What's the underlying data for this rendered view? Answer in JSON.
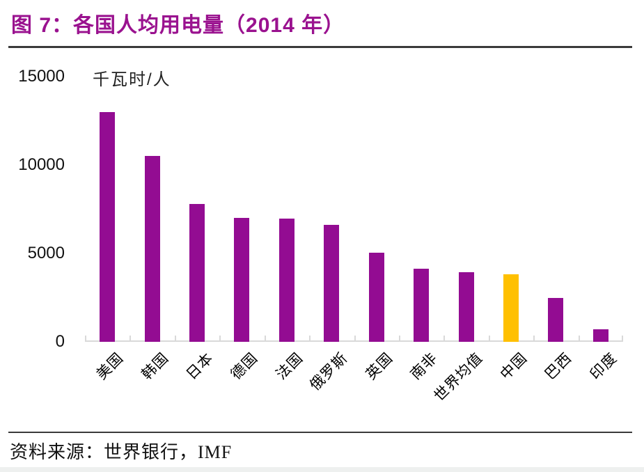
{
  "header": {
    "title": "图 7：各国人均用电量（2014 年）"
  },
  "chart_data": {
    "type": "bar",
    "title": "各国人均用电量（2014 年）",
    "unit_label": "千瓦时/人",
    "categories": [
      "美国",
      "韩国",
      "日本",
      "德国",
      "法国",
      "俄罗斯",
      "英国",
      "南非",
      "世界均值",
      "中国",
      "巴西",
      "印度"
    ],
    "values": [
      13000,
      10500,
      7800,
      7000,
      6950,
      6600,
      5050,
      4150,
      3920,
      3800,
      2500,
      710
    ],
    "highlight_category": "中国",
    "xlabel": "",
    "ylabel": "千瓦时/人",
    "ylim": [
      0,
      15000
    ],
    "y_ticks": [
      0,
      5000,
      10000,
      15000
    ],
    "grid": false,
    "legend": "none",
    "colors": {
      "bar": "#930C92",
      "highlight": "#FFC000",
      "title": "#9A128F",
      "axis": "#D9D9D9"
    }
  },
  "footer": {
    "source": "资料来源：世界银行，IMF"
  }
}
